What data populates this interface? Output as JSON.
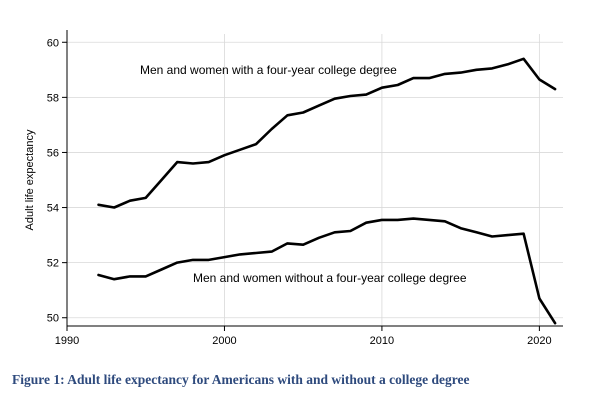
{
  "caption": "Figure 1: Adult life expectancy for Americans with and without a college degree",
  "chart_data": {
    "type": "line",
    "title": "",
    "xlabel": "",
    "ylabel": "Adult life expectancy",
    "xlim": [
      1990,
      2021.5
    ],
    "ylim": [
      49.7,
      60.3
    ],
    "x_ticks": [
      1990,
      2000,
      2010,
      2020
    ],
    "y_ticks": [
      50,
      52,
      54,
      56,
      58,
      60
    ],
    "grid": true,
    "legend": "none (series labeled inline)",
    "series": [
      {
        "name": "Men and women with a four-year college degree",
        "x": [
          1992,
          1993,
          1994,
          1995,
          1996,
          1997,
          1998,
          1999,
          2000,
          2001,
          2002,
          2003,
          2004,
          2005,
          2006,
          2007,
          2008,
          2009,
          2010,
          2011,
          2012,
          2013,
          2014,
          2015,
          2016,
          2017,
          2018,
          2019,
          2020,
          2021
        ],
        "values": [
          54.1,
          54.0,
          54.25,
          54.35,
          55.0,
          55.65,
          55.6,
          55.65,
          55.9,
          56.1,
          56.3,
          56.85,
          57.35,
          57.45,
          57.7,
          57.95,
          58.05,
          58.1,
          58.35,
          58.45,
          58.7,
          58.7,
          58.85,
          58.9,
          59.0,
          59.05,
          59.2,
          59.4,
          58.65,
          58.3
        ]
      },
      {
        "name": "Men and women without a four-year college degree",
        "x": [
          1992,
          1993,
          1994,
          1995,
          1996,
          1997,
          1998,
          1999,
          2000,
          2001,
          2002,
          2003,
          2004,
          2005,
          2006,
          2007,
          2008,
          2009,
          2010,
          2011,
          2012,
          2013,
          2014,
          2015,
          2016,
          2017,
          2018,
          2019,
          2020,
          2021
        ],
        "values": [
          51.55,
          51.4,
          51.5,
          51.5,
          51.75,
          52.0,
          52.1,
          52.1,
          52.2,
          52.3,
          52.35,
          52.4,
          52.7,
          52.65,
          52.9,
          53.1,
          53.15,
          53.45,
          53.55,
          53.55,
          53.6,
          53.55,
          53.5,
          53.25,
          53.1,
          52.95,
          53.0,
          53.05,
          50.7,
          49.8
        ]
      }
    ],
    "annotations": [
      {
        "text": "Men and women with a four-year college degree",
        "series": 0
      },
      {
        "text": "Men and women without a four-year college degree",
        "series": 1
      }
    ]
  }
}
